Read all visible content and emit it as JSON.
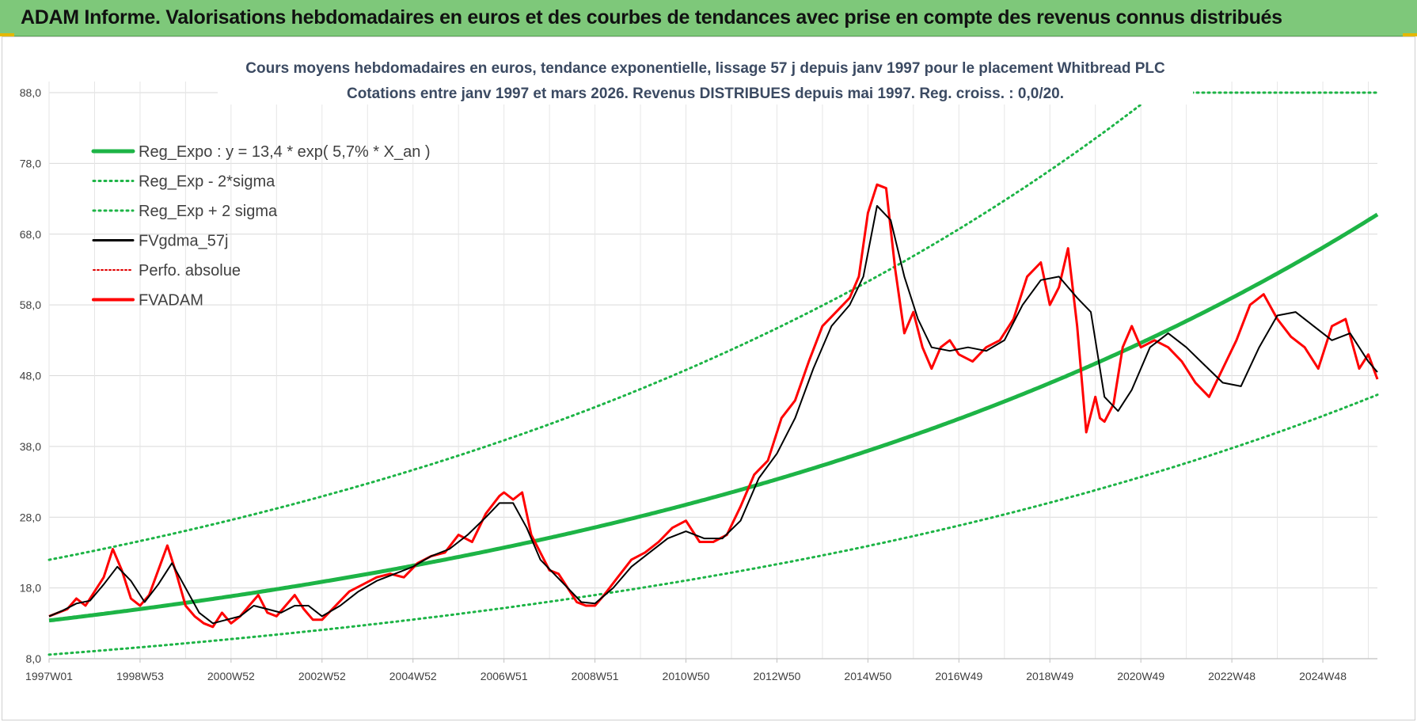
{
  "banner": {
    "title": "ADAM Informe. Valorisations hebdomadaires en euros et des courbes de tendances avec prise en compte des revenus connus distribués"
  },
  "colors": {
    "banner_bg": "#7ec87a",
    "reg_expo": "#1db446",
    "sigma": "#1db446",
    "fvgdma": "#000000",
    "perfo": "#e00000",
    "fvadam": "#ff0000",
    "title_text": "#3b4a62",
    "grid": "#d9d9d9"
  },
  "chart_data": {
    "type": "line",
    "title_line1": "Cours moyens hebdomadaires en euros, tendance exponentielle, lissage 57 j depuis janv 1997 pour le placement Whitbread PLC",
    "title_line2": "Cotations entre janv 1997 et mars 2026. Revenus DISTRIBUES depuis mai 1997. Reg. croiss. : 0,0/20.",
    "ylim": [
      8,
      88
    ],
    "y_ticks": [
      "8,0",
      "18,0",
      "28,0",
      "38,0",
      "48,0",
      "58,0",
      "68,0",
      "78,0",
      "88,0"
    ],
    "xlim": [
      1997.0,
      2026.2
    ],
    "x_tick_labels": [
      "1997W01",
      "1998W53",
      "2000W52",
      "2002W52",
      "2004W52",
      "2006W51",
      "2008W51",
      "2010W50",
      "2012W50",
      "2014W50",
      "2016W49",
      "2018W49",
      "2020W49",
      "2022W48",
      "2024W48"
    ],
    "x_tick_years": [
      1997.0,
      1999.0,
      2001.0,
      2003.0,
      2005.0,
      2007.0,
      2009.0,
      2011.0,
      2013.0,
      2015.0,
      2017.0,
      2019.0,
      2021.0,
      2023.0,
      2025.0
    ],
    "grid": true,
    "legend_position": "top-left",
    "legend": [
      {
        "key": "reg_expo",
        "label": "Reg_Expo : y = 13,4 * exp( 5,7% *  X_an )",
        "style": "thick"
      },
      {
        "key": "sigma_low",
        "label": "Reg_Exp - 2*sigma",
        "style": "dotted"
      },
      {
        "key": "sigma_high",
        "label": "Reg_Exp + 2 sigma",
        "style": "dotted"
      },
      {
        "key": "fvgdma",
        "label": "FVgdma_57j",
        "style": "solid"
      },
      {
        "key": "perfo",
        "label": "Perfo. absolue",
        "style": "dotted"
      },
      {
        "key": "fvadam",
        "label": "FVADAM",
        "style": "thick"
      }
    ],
    "regression": {
      "a": 13.4,
      "rate": 0.057,
      "start_year": 1997.0,
      "sigma_factor_high": 1.64,
      "sigma_factor_low": 0.64
    },
    "series": [
      {
        "name": "FVADAM",
        "x": [
          1997.0,
          1997.2,
          1997.4,
          1997.6,
          1997.8,
          1998.0,
          1998.2,
          1998.4,
          1998.6,
          1998.8,
          1999.0,
          1999.2,
          1999.4,
          1999.6,
          1999.8,
          2000.0,
          2000.2,
          2000.4,
          2000.6,
          2000.8,
          2001.0,
          2001.2,
          2001.4,
          2001.6,
          2001.8,
          2002.0,
          2002.2,
          2002.4,
          2002.6,
          2002.8,
          2003.0,
          2003.3,
          2003.6,
          2003.9,
          2004.2,
          2004.5,
          2004.8,
          2005.1,
          2005.4,
          2005.7,
          2006.0,
          2006.3,
          2006.6,
          2006.9,
          2007.0,
          2007.2,
          2007.4,
          2007.6,
          2007.8,
          2008.0,
          2008.2,
          2008.4,
          2008.6,
          2008.8,
          2009.0,
          2009.2,
          2009.5,
          2009.8,
          2010.1,
          2010.4,
          2010.7,
          2011.0,
          2011.3,
          2011.6,
          2011.9,
          2012.2,
          2012.5,
          2012.8,
          2013.1,
          2013.4,
          2013.7,
          2014.0,
          2014.3,
          2014.6,
          2014.8,
          2015.0,
          2015.2,
          2015.4,
          2015.6,
          2015.8,
          2016.0,
          2016.2,
          2016.4,
          2016.6,
          2016.8,
          2017.0,
          2017.3,
          2017.6,
          2017.9,
          2018.2,
          2018.5,
          2018.8,
          2019.0,
          2019.2,
          2019.4,
          2019.6,
          2019.8,
          2020.0,
          2020.1,
          2020.2,
          2020.4,
          2020.6,
          2020.8,
          2021.0,
          2021.3,
          2021.6,
          2021.9,
          2022.2,
          2022.5,
          2022.8,
          2023.1,
          2023.4,
          2023.7,
          2024.0,
          2024.3,
          2024.6,
          2024.9,
          2025.2,
          2025.5,
          2025.8,
          2026.0,
          2026.2
        ],
        "y": [
          14.0,
          14.5,
          15.0,
          16.5,
          15.5,
          17.5,
          19.5,
          23.5,
          20.5,
          16.5,
          15.5,
          17.0,
          20.5,
          24.0,
          20.0,
          15.5,
          14.0,
          13.0,
          12.5,
          14.5,
          13.0,
          14.0,
          15.5,
          17.0,
          14.5,
          14.0,
          15.5,
          17.0,
          15.0,
          13.5,
          13.5,
          15.5,
          17.5,
          18.5,
          19.5,
          20.0,
          19.5,
          21.5,
          22.5,
          23.0,
          25.5,
          24.5,
          28.5,
          31.0,
          31.5,
          30.5,
          31.5,
          25.5,
          23.0,
          20.5,
          20.0,
          18.0,
          16.0,
          15.5,
          15.5,
          17.0,
          19.5,
          22.0,
          23.0,
          24.5,
          26.5,
          27.5,
          24.5,
          24.5,
          25.5,
          29.5,
          34.0,
          36.0,
          42.0,
          44.5,
          50.0,
          55.0,
          57.0,
          59.0,
          62.0,
          71.0,
          75.0,
          74.5,
          63.0,
          54.0,
          57.0,
          52.0,
          49.0,
          52.0,
          53.0,
          51.0,
          50.0,
          52.0,
          53.0,
          56.0,
          62.0,
          64.0,
          58.0,
          60.5,
          66.0,
          55.0,
          40.0,
          45.0,
          42.0,
          41.5,
          44.0,
          52.0,
          55.0,
          52.0,
          53.0,
          52.0,
          50.0,
          47.0,
          45.0,
          49.0,
          53.0,
          58.0,
          59.5,
          56.0,
          53.5,
          52.0,
          49.0,
          55.0,
          56.0,
          49.0,
          51.0,
          47.5
        ]
      },
      {
        "name": "FVgdma_57j",
        "x": [
          1997.0,
          1997.3,
          1997.6,
          1997.9,
          1998.2,
          1998.5,
          1998.8,
          1999.1,
          1999.4,
          1999.7,
          2000.0,
          2000.3,
          2000.6,
          2000.9,
          2001.2,
          2001.5,
          2001.8,
          2002.1,
          2002.4,
          2002.7,
          2003.0,
          2003.4,
          2003.8,
          2004.2,
          2004.6,
          2005.0,
          2005.4,
          2005.8,
          2006.2,
          2006.6,
          2006.9,
          2007.2,
          2007.5,
          2007.8,
          2008.1,
          2008.4,
          2008.7,
          2009.0,
          2009.4,
          2009.8,
          2010.2,
          2010.6,
          2011.0,
          2011.4,
          2011.8,
          2012.2,
          2012.6,
          2013.0,
          2013.4,
          2013.8,
          2014.2,
          2014.6,
          2014.9,
          2015.2,
          2015.5,
          2015.8,
          2016.1,
          2016.4,
          2016.8,
          2017.2,
          2017.6,
          2018.0,
          2018.4,
          2018.8,
          2019.2,
          2019.6,
          2019.9,
          2020.2,
          2020.5,
          2020.8,
          2021.2,
          2021.6,
          2022.0,
          2022.4,
          2022.8,
          2023.2,
          2023.6,
          2024.0,
          2024.4,
          2024.8,
          2025.2,
          2025.6,
          2026.0,
          2026.2
        ],
        "y": [
          14.0,
          14.8,
          15.8,
          16.2,
          18.5,
          21.0,
          19.0,
          16.0,
          18.5,
          21.5,
          18.0,
          14.5,
          13.0,
          13.5,
          14.0,
          15.5,
          15.0,
          14.5,
          15.5,
          15.5,
          14.0,
          15.5,
          17.5,
          19.0,
          20.0,
          21.0,
          22.5,
          23.5,
          25.5,
          28.0,
          30.0,
          30.0,
          26.5,
          22.0,
          20.0,
          18.0,
          16.0,
          15.8,
          18.0,
          21.0,
          23.0,
          25.0,
          26.0,
          25.0,
          25.0,
          27.5,
          33.5,
          37.0,
          42.0,
          49.0,
          55.0,
          58.0,
          62.0,
          72.0,
          70.0,
          62.0,
          56.0,
          52.0,
          51.5,
          52.0,
          51.5,
          53.0,
          58.0,
          61.5,
          62.0,
          59.0,
          57.0,
          45.0,
          43.0,
          46.0,
          52.0,
          54.0,
          52.0,
          49.5,
          47.0,
          46.5,
          52.0,
          56.5,
          57.0,
          55.0,
          53.0,
          54.0,
          50.0,
          48.5
        ]
      },
      {
        "name": "Perfo. absolue",
        "x": [],
        "y": []
      }
    ]
  }
}
